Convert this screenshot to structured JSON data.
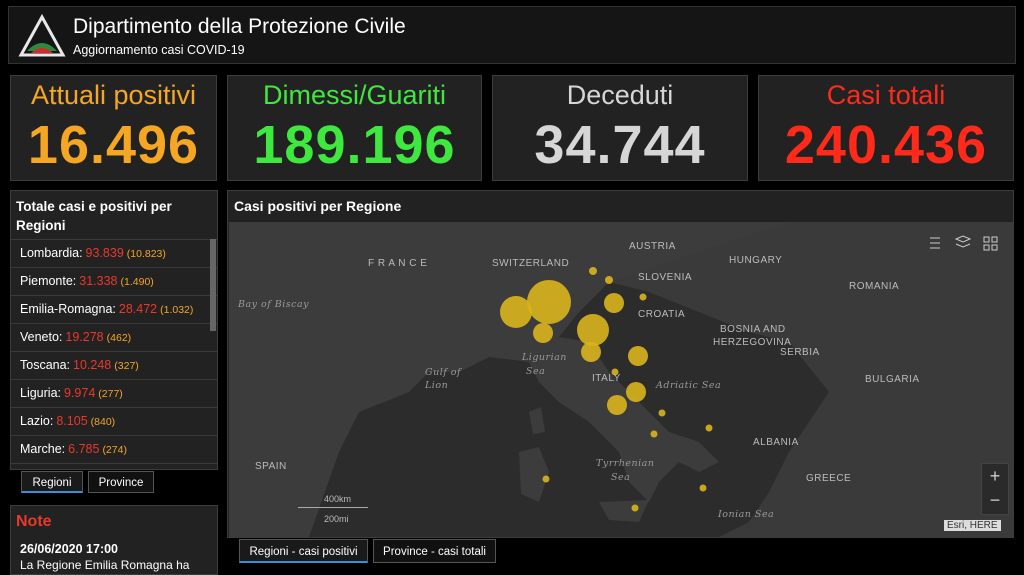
{
  "header": {
    "title": "Dipartimento della Protezione Civile",
    "subtitle": "Aggiornamento casi COVID-19"
  },
  "stats": [
    {
      "label": "Attuali positivi",
      "value": "16.496"
    },
    {
      "label": "Dimessi/Guariti",
      "value": "189.196"
    },
    {
      "label": "Deceduti",
      "value": "34.744"
    },
    {
      "label": "Casi totali",
      "value": "240.436"
    }
  ],
  "regions_panel": {
    "title": "Totale casi e positivi per Regioni",
    "rows": [
      {
        "name": "Lombardia:",
        "total": "93.839",
        "positive": "(10.823)"
      },
      {
        "name": "Piemonte:",
        "total": "31.338",
        "positive": "(1.490)"
      },
      {
        "name": "Emilia-Romagna:",
        "total": "28.472",
        "positive": "(1.032)"
      },
      {
        "name": "Veneto:",
        "total": "19.278",
        "positive": "(462)"
      },
      {
        "name": "Toscana:",
        "total": "10.248",
        "positive": "(327)"
      },
      {
        "name": "Liguria:",
        "total": "9.974",
        "positive": "(277)"
      },
      {
        "name": "Lazio:",
        "total": "8.105",
        "positive": "(840)"
      },
      {
        "name": "Marche:",
        "total": "6.785",
        "positive": "(274)"
      }
    ],
    "tabs": [
      "Regioni",
      "Province"
    ]
  },
  "note": {
    "title": "Note",
    "date": "26/06/2020 17:00",
    "text": "La Regione Emilia Romagna ha"
  },
  "map": {
    "title": "Casi positivi per Regione",
    "labels": [
      "F R A N C E",
      "SWITZERLAND",
      "AUSTRIA",
      "HUNGARY",
      "SLOVENIA",
      "CROATIA",
      "ROMANIA",
      "BOSNIA AND",
      "HERZEGOVINA",
      "SERBIA",
      "BULGARIA",
      "Bay of Biscay",
      "Gulf of",
      "Lion",
      "Ligurian",
      "Sea",
      "ITALY",
      "Adriatic Sea",
      "Tyrrhenian",
      "Sea",
      "SPAIN",
      "ALBANIA",
      "GREECE",
      "Ionian Sea"
    ],
    "scale": [
      "400km",
      "200mi"
    ],
    "attribution": "Esri, HERE",
    "zoom": [
      "+",
      "−"
    ],
    "tabs": [
      "Regioni - casi positivi",
      "Province - casi totali"
    ]
  }
}
